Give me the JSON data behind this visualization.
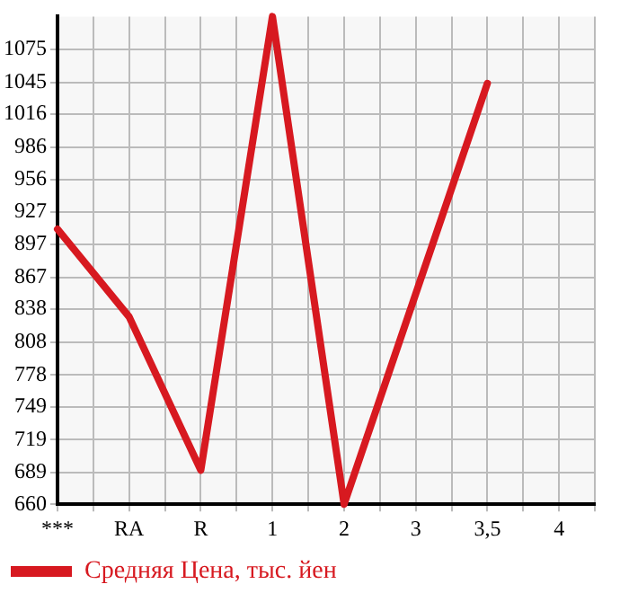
{
  "chart_data": {
    "type": "line",
    "categories": [
      "***",
      "RA",
      "R",
      "1",
      "2",
      "3",
      "3,5",
      "4"
    ],
    "series": [
      {
        "name": "Средняя Цена, тыс. йен",
        "color": "#d71920",
        "values": [
          911,
          831,
          691,
          1105,
          660,
          null,
          1044,
          null
        ]
      }
    ],
    "ylim": [
      660,
      1105
    ],
    "yticks": [
      660,
      689,
      719,
      749,
      778,
      808,
      838,
      867,
      897,
      927,
      956,
      986,
      1016,
      1045,
      1075
    ],
    "grid": true,
    "legend": "bottom",
    "marker": "none",
    "line_style": "solid"
  }
}
